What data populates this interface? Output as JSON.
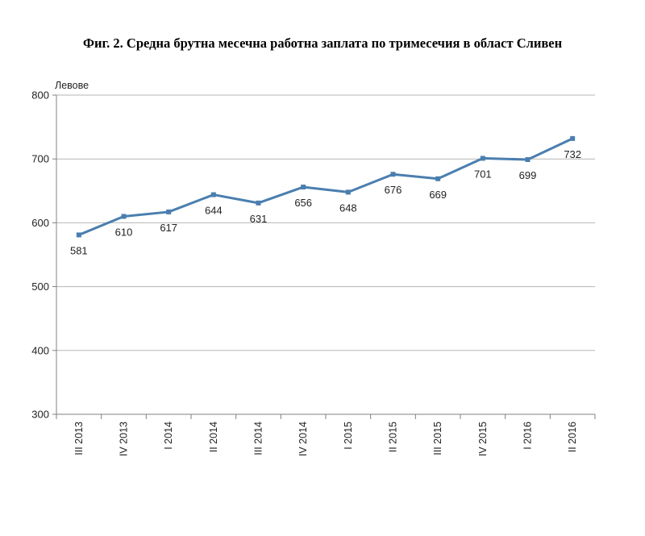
{
  "title": "Фиг. 2. Средна брутна месечна работна заплата по тримесечия в област Сливен",
  "chart_data": {
    "type": "line",
    "title": "Фиг. 2. Средна брутна месечна работна заплата по тримесечия в област Сливен",
    "ylabel": "Левове",
    "xlabel": "",
    "ylim": [
      300,
      800
    ],
    "yticks": [
      300,
      400,
      500,
      600,
      700,
      800
    ],
    "grid": true,
    "legend": "none",
    "categories": [
      "III 2013",
      "IV 2013",
      "I 2014",
      "II 2014",
      "III 2014",
      "IV 2014",
      "I 2015",
      "II 2015",
      "III 2015",
      "IV 2015",
      "I 2016",
      "II 2016"
    ],
    "series": [
      {
        "values": [
          581,
          610,
          617,
          644,
          631,
          656,
          648,
          676,
          669,
          701,
          699,
          732
        ],
        "color": "#4a7eaf",
        "marker": "square",
        "data_labels": true
      }
    ],
    "colors": {
      "line": "#4a7eaf",
      "grid": "#b5b5b5",
      "axis": "#808080"
    }
  }
}
